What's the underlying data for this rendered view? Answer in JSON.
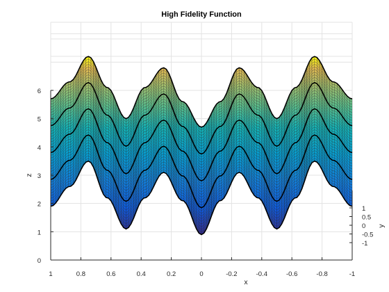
{
  "chart_data": {
    "type": "surface",
    "title": "High Fidelity Function",
    "xlabel": "x",
    "ylabel": "y",
    "zlabel": "z",
    "xlim": [
      -1,
      1
    ],
    "ylim": [
      -1,
      1
    ],
    "zlim": [
      0,
      6
    ],
    "x_direction": "reversed",
    "xticks": [
      1,
      0.8,
      0.6,
      0.4,
      0.2,
      0,
      -0.2,
      -0.4,
      -0.6,
      -0.8,
      -1
    ],
    "xtick_labels": [
      "1",
      "0.8",
      "0.6",
      "0.4",
      "0.2",
      "0",
      "-0.2",
      "-0.4",
      "-0.6",
      "-0.8",
      "-1"
    ],
    "yticks": [
      1,
      0.5,
      0,
      -0.5,
      -1
    ],
    "ytick_labels": [
      "1",
      "0.5",
      "0",
      "-0.5",
      "-1"
    ],
    "zticks": [
      0,
      1,
      2,
      3,
      4,
      5,
      6
    ],
    "ztick_labels": [
      "0",
      "1",
      "2",
      "3",
      "4",
      "5",
      "6"
    ],
    "grid": true,
    "colormap": "parula",
    "surface": {
      "min_curve": {
        "x": [
          1,
          0.875,
          0.75,
          0.625,
          0.5,
          0.375,
          0.25,
          0.125,
          0,
          -0.125,
          -0.25,
          -0.375,
          -0.5,
          -0.625,
          -0.75,
          -0.875,
          -1
        ],
        "z": [
          1.9,
          2.6,
          3.5,
          2.2,
          1.1,
          2.2,
          3.1,
          2.1,
          0.9,
          2.1,
          3.1,
          2.2,
          1.1,
          2.2,
          3.5,
          2.6,
          1.9
        ]
      },
      "max_curve": {
        "x": [
          1,
          0.875,
          0.75,
          0.625,
          0.5,
          0.375,
          0.25,
          0.125,
          0,
          -0.125,
          -0.25,
          -0.375,
          -0.5,
          -0.625,
          -0.75,
          -0.875,
          -1
        ],
        "z": [
          5.7,
          6.3,
          7.2,
          6.1,
          5.0,
          6.1,
          6.8,
          5.6,
          4.7,
          5.6,
          6.8,
          6.1,
          5.0,
          6.1,
          7.2,
          6.3,
          5.7
        ]
      },
      "highlighted_rows": 5
    }
  }
}
